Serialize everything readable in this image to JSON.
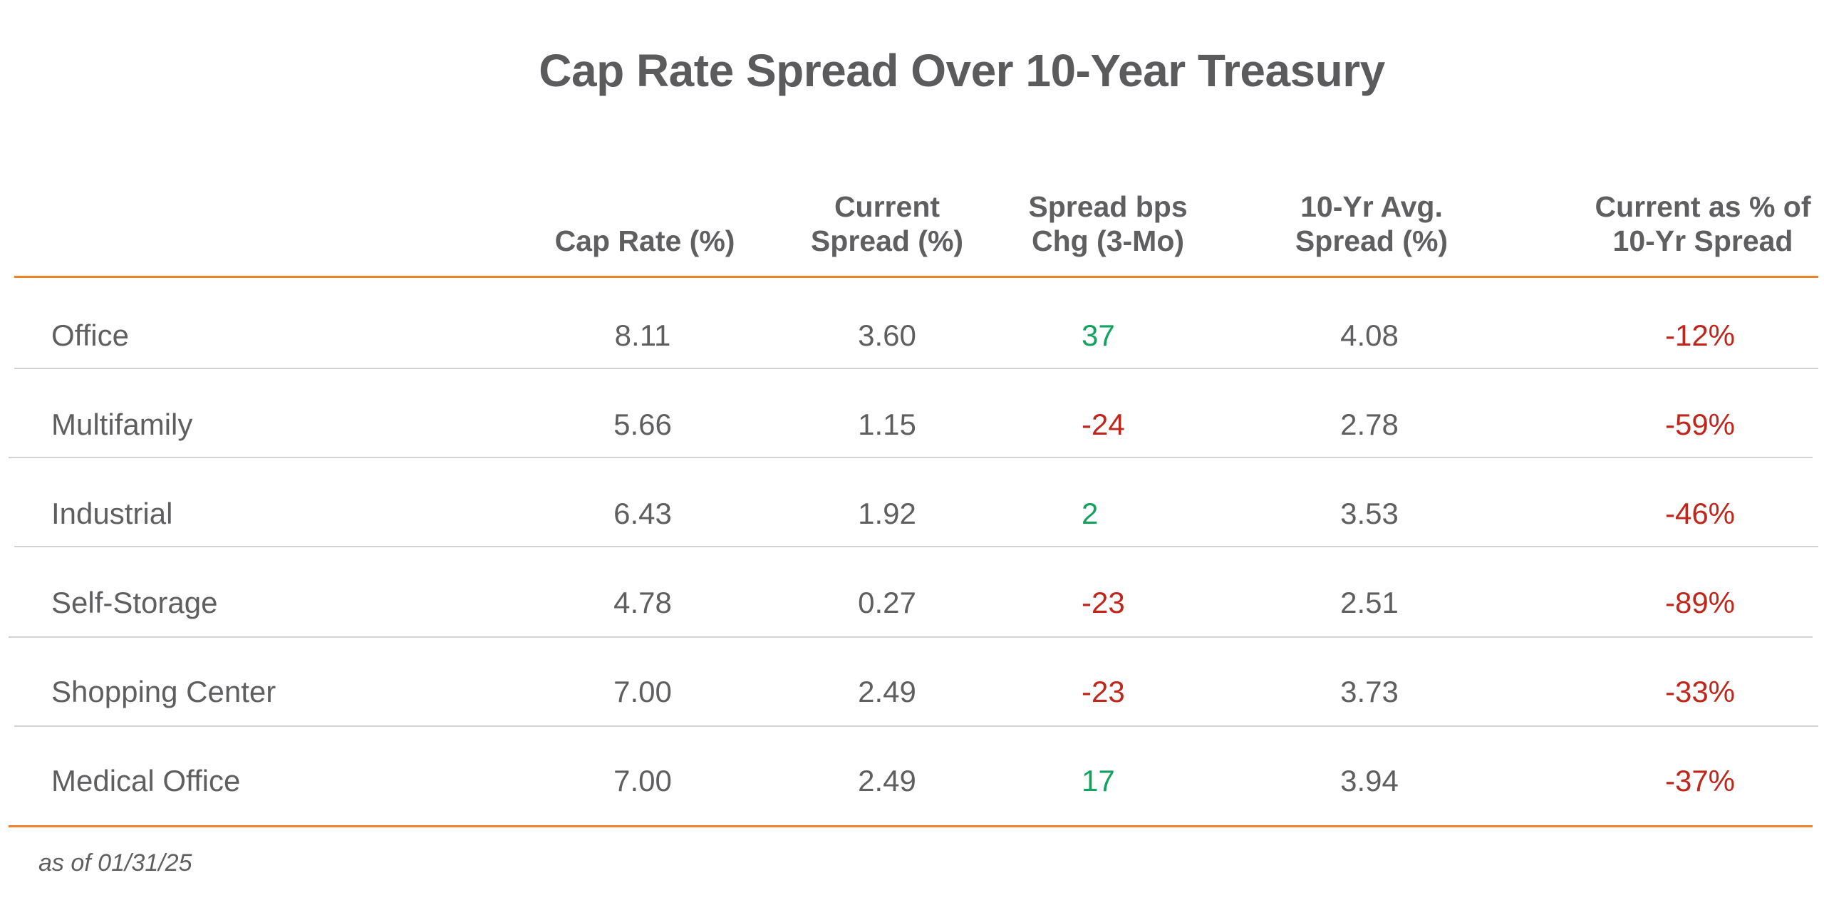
{
  "chart_data": {
    "type": "table",
    "title": "Cap Rate Spread Over 10-Year Treasury",
    "columns": [
      {
        "key": "cap_rate",
        "label": [
          "Cap Rate (%)"
        ]
      },
      {
        "key": "current_spread",
        "label": [
          "Current",
          "Spread (%)"
        ]
      },
      {
        "key": "spread_chg",
        "label": [
          "Spread bps",
          "Chg (3-Mo)"
        ]
      },
      {
        "key": "avg_spread",
        "label": [
          "10-Yr Avg.",
          "Spread (%)"
        ]
      },
      {
        "key": "pct_of_avg",
        "label": [
          "Current as % of",
          "10-Yr Spread"
        ]
      }
    ],
    "rows": [
      {
        "category": "Office",
        "cap_rate": "8.11",
        "current_spread": "3.60",
        "spread_chg": "37",
        "avg_spread": "4.08",
        "pct_of_avg": "-12%"
      },
      {
        "category": "Multifamily",
        "cap_rate": "5.66",
        "current_spread": "1.15",
        "spread_chg": "-24",
        "avg_spread": "2.78",
        "pct_of_avg": "-59%"
      },
      {
        "category": "Industrial",
        "cap_rate": "6.43",
        "current_spread": "1.92",
        "spread_chg": "2",
        "avg_spread": "3.53",
        "pct_of_avg": "-46%"
      },
      {
        "category": "Self-Storage",
        "cap_rate": "4.78",
        "current_spread": "0.27",
        "spread_chg": "-23",
        "avg_spread": "2.51",
        "pct_of_avg": "-89%"
      },
      {
        "category": "Shopping Center",
        "cap_rate": "7.00",
        "current_spread": "2.49",
        "spread_chg": "-23",
        "avg_spread": "3.73",
        "pct_of_avg": "-33%"
      },
      {
        "category": "Medical Office",
        "cap_rate": "7.00",
        "current_spread": "2.49",
        "spread_chg": "17",
        "avg_spread": "3.94",
        "pct_of_avg": "-37%"
      }
    ],
    "footnote": "as of 01/31/25",
    "colors": {
      "positive": "#13a35e",
      "negative": "#c0261b",
      "accent_rule": "#f0822c",
      "row_rule": "#d3d3d3",
      "text": "#5f5f61"
    }
  }
}
